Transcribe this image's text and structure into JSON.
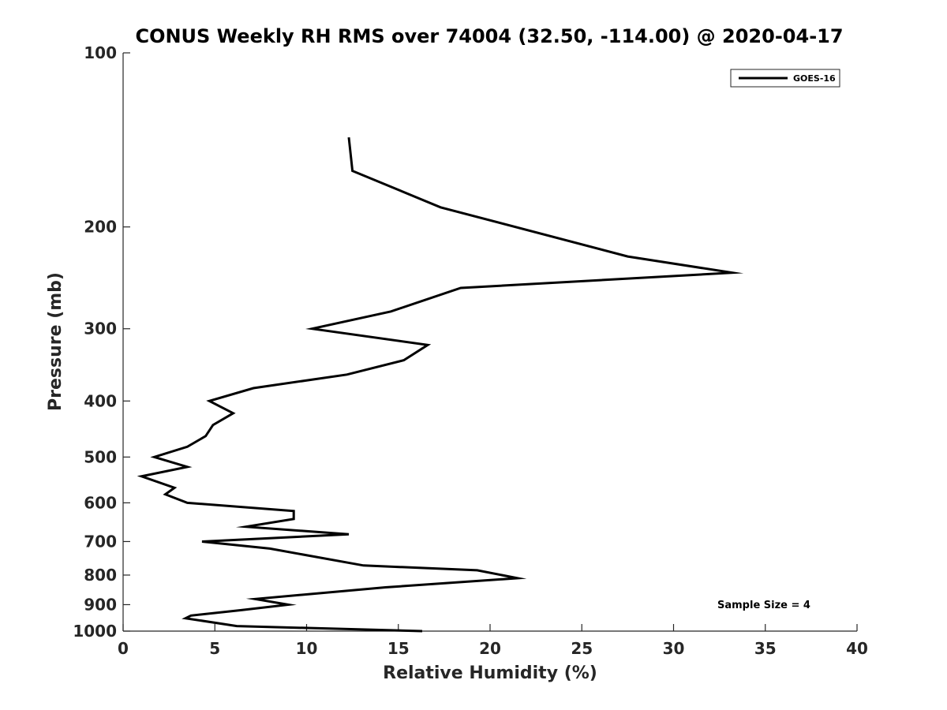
{
  "chart_data": {
    "type": "line",
    "title": "CONUS Weekly RH RMS over 74004 (32.50, -114.00) @ 2020-04-17",
    "xlabel": "Relative Humidity (%)",
    "ylabel": "Pressure (mb)",
    "xlim": [
      0,
      40
    ],
    "ylim": [
      100,
      1000
    ],
    "y_scale": "log",
    "y_reversed": true,
    "grid": false,
    "legend_position": "top-right",
    "x_ticks": [
      0,
      5,
      10,
      15,
      20,
      25,
      30,
      35,
      40
    ],
    "y_ticks": [
      100,
      200,
      300,
      400,
      500,
      600,
      700,
      800,
      900,
      1000
    ],
    "series": [
      {
        "name": "GOES-16",
        "color": "#000000",
        "points": [
          {
            "x": 12.3,
            "p": 140
          },
          {
            "x": 12.5,
            "p": 160
          },
          {
            "x": 17.3,
            "p": 185
          },
          {
            "x": 27.5,
            "p": 225
          },
          {
            "x": 33.2,
            "p": 240
          },
          {
            "x": 18.4,
            "p": 255
          },
          {
            "x": 14.6,
            "p": 280
          },
          {
            "x": 10.3,
            "p": 300
          },
          {
            "x": 16.6,
            "p": 320
          },
          {
            "x": 15.3,
            "p": 340
          },
          {
            "x": 12.2,
            "p": 360
          },
          {
            "x": 7.1,
            "p": 380
          },
          {
            "x": 4.7,
            "p": 400
          },
          {
            "x": 6.0,
            "p": 420
          },
          {
            "x": 4.9,
            "p": 440
          },
          {
            "x": 4.5,
            "p": 460
          },
          {
            "x": 3.5,
            "p": 480
          },
          {
            "x": 1.7,
            "p": 500
          },
          {
            "x": 3.5,
            "p": 520
          },
          {
            "x": 1.0,
            "p": 540
          },
          {
            "x": 2.8,
            "p": 565
          },
          {
            "x": 2.3,
            "p": 580
          },
          {
            "x": 3.5,
            "p": 600
          },
          {
            "x": 9.3,
            "p": 620
          },
          {
            "x": 9.3,
            "p": 640
          },
          {
            "x": 6.7,
            "p": 660
          },
          {
            "x": 12.3,
            "p": 680
          },
          {
            "x": 4.3,
            "p": 700
          },
          {
            "x": 8.0,
            "p": 720
          },
          {
            "x": 13.1,
            "p": 770
          },
          {
            "x": 19.3,
            "p": 785
          },
          {
            "x": 21.5,
            "p": 810
          },
          {
            "x": 14.3,
            "p": 840
          },
          {
            "x": 7.2,
            "p": 880
          },
          {
            "x": 9.0,
            "p": 900
          },
          {
            "x": 6.4,
            "p": 920
          },
          {
            "x": 3.7,
            "p": 940
          },
          {
            "x": 3.4,
            "p": 950
          },
          {
            "x": 6.2,
            "p": 980
          },
          {
            "x": 16.3,
            "p": 1000
          }
        ]
      }
    ],
    "annotations": [
      "Sample Size = 4"
    ]
  }
}
